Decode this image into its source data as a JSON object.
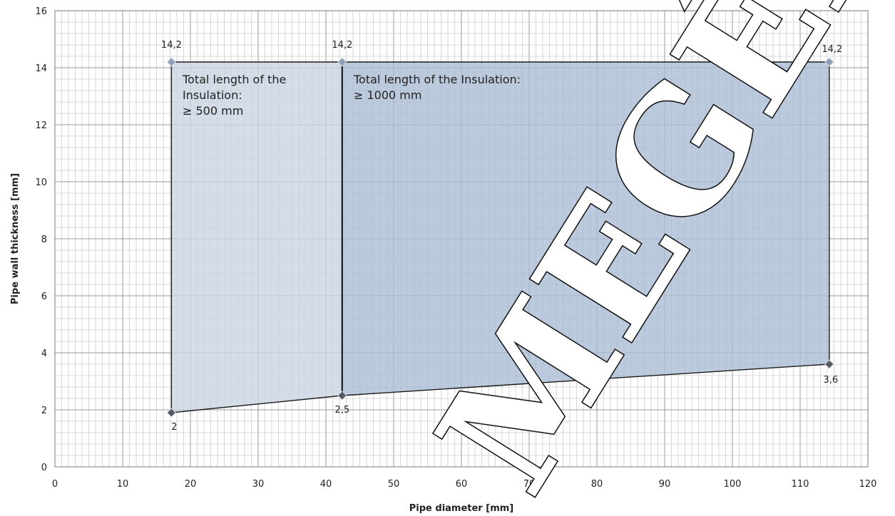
{
  "chart_data": {
    "type": "area",
    "xlabel": "Pipe diameter [mm]",
    "ylabel": "Pipe wall thickness [mm]",
    "xlim": [
      0,
      120
    ],
    "ylim": [
      0,
      16
    ],
    "x_ticks": [
      "0",
      "10",
      "20",
      "30",
      "40",
      "50",
      "60",
      "70",
      "80",
      "90",
      "100",
      "110",
      "120"
    ],
    "y_ticks": [
      "0",
      "2",
      "4",
      "6",
      "8",
      "10",
      "12",
      "14",
      "16"
    ],
    "grid": true,
    "regions": [
      {
        "label_lines": [
          "Total length of the",
          "Insulation:",
          "≥ 500 mm"
        ],
        "color": "#c9d3e1",
        "points": [
          [
            17.2,
            1.9
          ],
          [
            17.2,
            14.2
          ],
          [
            42.4,
            14.2
          ],
          [
            42.4,
            2.5
          ]
        ]
      },
      {
        "label_lines": [
          "Total length of the Insulation:",
          "≥ 1000 mm"
        ],
        "color": "#a9bbd3",
        "points": [
          [
            42.4,
            2.5
          ],
          [
            42.4,
            14.2
          ],
          [
            114.3,
            14.2
          ],
          [
            114.3,
            3.6
          ]
        ]
      }
    ],
    "points": [
      {
        "x": 17.2,
        "y": 14.2,
        "label": "14,2"
      },
      {
        "x": 42.4,
        "y": 14.2,
        "label": "14,2"
      },
      {
        "x": 114.3,
        "y": 14.2,
        "label": "14,2"
      },
      {
        "x": 17.2,
        "y": 1.9,
        "label": "2"
      },
      {
        "x": 42.4,
        "y": 2.5,
        "label": "2,5"
      },
      {
        "x": 114.3,
        "y": 3.6,
        "label": "3,6"
      }
    ]
  },
  "watermark": {
    "text": "MEGÉDLET",
    "color": "#111111"
  }
}
